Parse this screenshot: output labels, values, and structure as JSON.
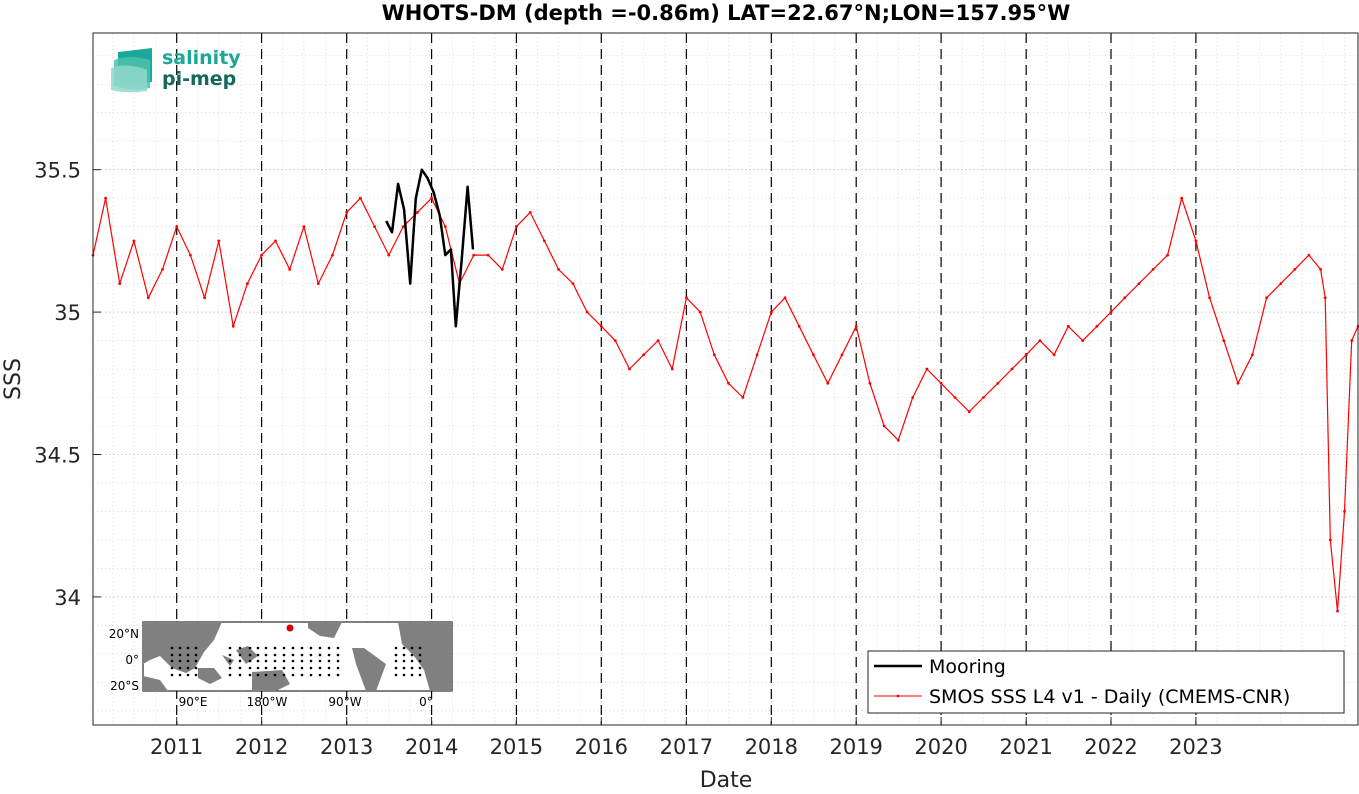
{
  "logo": {
    "line1": "salinity",
    "line2": "pi-mep",
    "color1": "#1aa89a",
    "color2": "#14695f"
  },
  "inset_map": {
    "lat_labels": [
      "20°N",
      "0°",
      "20°S"
    ],
    "lon_labels": [
      "90°E",
      "180°W",
      "90°W",
      "0°"
    ],
    "land_color": "#808080",
    "ocean_color": "#ffffff",
    "marker_color": "#d40000"
  },
  "chart_data": {
    "type": "line",
    "title": "WHOTS-DM (depth =-0.86m) LAT=22.67°N;LON=157.95°W",
    "xlabel": "Date",
    "ylabel": "SSS",
    "xlim": [
      "2010-01-06",
      "2024-11-28"
    ],
    "ylim": [
      33.55,
      35.98
    ],
    "yticks": [
      34,
      34.5,
      35,
      35.5
    ],
    "ytick_labels": [
      "34",
      "34.5",
      "35",
      "35.5"
    ],
    "xticks": [
      "2011-01-01",
      "2012-01-01",
      "2013-01-01",
      "2014-01-01",
      "2015-01-01",
      "2016-01-01",
      "2017-01-01",
      "2018-01-01",
      "2019-01-01",
      "2020-01-01",
      "2021-01-01",
      "2022-01-01",
      "2023-01-01"
    ],
    "xtick_labels": [
      "2011",
      "2012",
      "2013",
      "2014",
      "2015",
      "2016",
      "2017",
      "2018",
      "2019",
      "2020",
      "2021",
      "2022",
      "2023"
    ],
    "grid": true,
    "legend_position": "bottom-right",
    "year_boundaries_dashed": true,
    "series": [
      {
        "name": "Mooring",
        "color": "#000000",
        "dates": [
          "2013-06-20",
          "2013-07-15",
          "2013-08-10",
          "2013-09-05",
          "2013-10-01",
          "2013-10-25",
          "2013-11-20",
          "2013-12-15",
          "2014-01-10",
          "2014-02-05",
          "2014-03-01",
          "2014-03-25",
          "2014-04-15",
          "2014-05-10",
          "2014-06-05",
          "2014-06-28"
        ],
        "values": [
          35.32,
          35.28,
          35.45,
          35.36,
          35.1,
          35.4,
          35.5,
          35.47,
          35.42,
          35.34,
          35.2,
          35.22,
          34.95,
          35.18,
          35.44,
          35.22
        ]
      },
      {
        "name": "SMOS SSS L4 v1 - Daily (CMEMS-CNR)",
        "color": "#ff0000",
        "dates": [
          "2010-01-06",
          "2010-03-01",
          "2010-05-01",
          "2010-07-01",
          "2010-09-01",
          "2010-11-01",
          "2011-01-01",
          "2011-03-01",
          "2011-05-01",
          "2011-07-01",
          "2011-09-01",
          "2011-11-01",
          "2012-01-01",
          "2012-03-01",
          "2012-05-01",
          "2012-07-01",
          "2012-09-01",
          "2012-11-01",
          "2013-01-01",
          "2013-03-01",
          "2013-05-01",
          "2013-07-01",
          "2013-09-01",
          "2013-11-01",
          "2014-01-01",
          "2014-03-01",
          "2014-05-01",
          "2014-07-01",
          "2014-09-01",
          "2014-11-01",
          "2015-01-01",
          "2015-03-01",
          "2015-05-01",
          "2015-07-01",
          "2015-09-01",
          "2015-11-01",
          "2016-01-01",
          "2016-03-01",
          "2016-05-01",
          "2016-07-01",
          "2016-09-01",
          "2016-11-01",
          "2017-01-01",
          "2017-03-01",
          "2017-05-01",
          "2017-07-01",
          "2017-09-01",
          "2017-11-01",
          "2018-01-01",
          "2018-03-01",
          "2018-05-01",
          "2018-07-01",
          "2018-09-01",
          "2018-11-01",
          "2019-01-01",
          "2019-03-01",
          "2019-05-01",
          "2019-07-01",
          "2019-09-01",
          "2019-11-01",
          "2020-01-01",
          "2020-03-01",
          "2020-05-01",
          "2020-07-01",
          "2020-09-01",
          "2020-11-01",
          "2021-01-01",
          "2021-03-01",
          "2021-05-01",
          "2021-07-01",
          "2021-09-01",
          "2021-11-01",
          "2022-01-01",
          "2022-03-01",
          "2022-05-01",
          "2022-07-01",
          "2022-09-01",
          "2022-11-01",
          "2023-01-01",
          "2023-03-01",
          "2023-05-01",
          "2023-07-01",
          "2023-09-01",
          "2023-11-01",
          "2024-01-01",
          "2024-03-01",
          "2024-05-01",
          "2024-06-20",
          "2024-07-10",
          "2024-08-01",
          "2024-09-01",
          "2024-10-01",
          "2024-11-01",
          "2024-11-28"
        ],
        "values": [
          35.2,
          35.4,
          35.1,
          35.25,
          35.05,
          35.15,
          35.3,
          35.2,
          35.05,
          35.25,
          34.95,
          35.1,
          35.2,
          35.25,
          35.15,
          35.3,
          35.1,
          35.2,
          35.35,
          35.4,
          35.3,
          35.2,
          35.3,
          35.35,
          35.4,
          35.3,
          35.1,
          35.2,
          35.2,
          35.15,
          35.3,
          35.35,
          35.25,
          35.15,
          35.1,
          35.0,
          34.95,
          34.9,
          34.8,
          34.85,
          34.9,
          34.8,
          35.05,
          35.0,
          34.85,
          34.75,
          34.7,
          34.85,
          35.0,
          35.05,
          34.95,
          34.85,
          34.75,
          34.85,
          34.95,
          34.75,
          34.6,
          34.55,
          34.7,
          34.8,
          34.75,
          34.7,
          34.65,
          34.7,
          34.75,
          34.8,
          34.85,
          34.9,
          34.85,
          34.95,
          34.9,
          34.95,
          35.0,
          35.05,
          35.1,
          35.15,
          35.2,
          35.4,
          35.25,
          35.05,
          34.9,
          34.75,
          34.85,
          35.05,
          35.1,
          35.15,
          35.2,
          35.15,
          35.05,
          34.2,
          33.95,
          34.3,
          34.9,
          34.95
        ]
      }
    ]
  }
}
